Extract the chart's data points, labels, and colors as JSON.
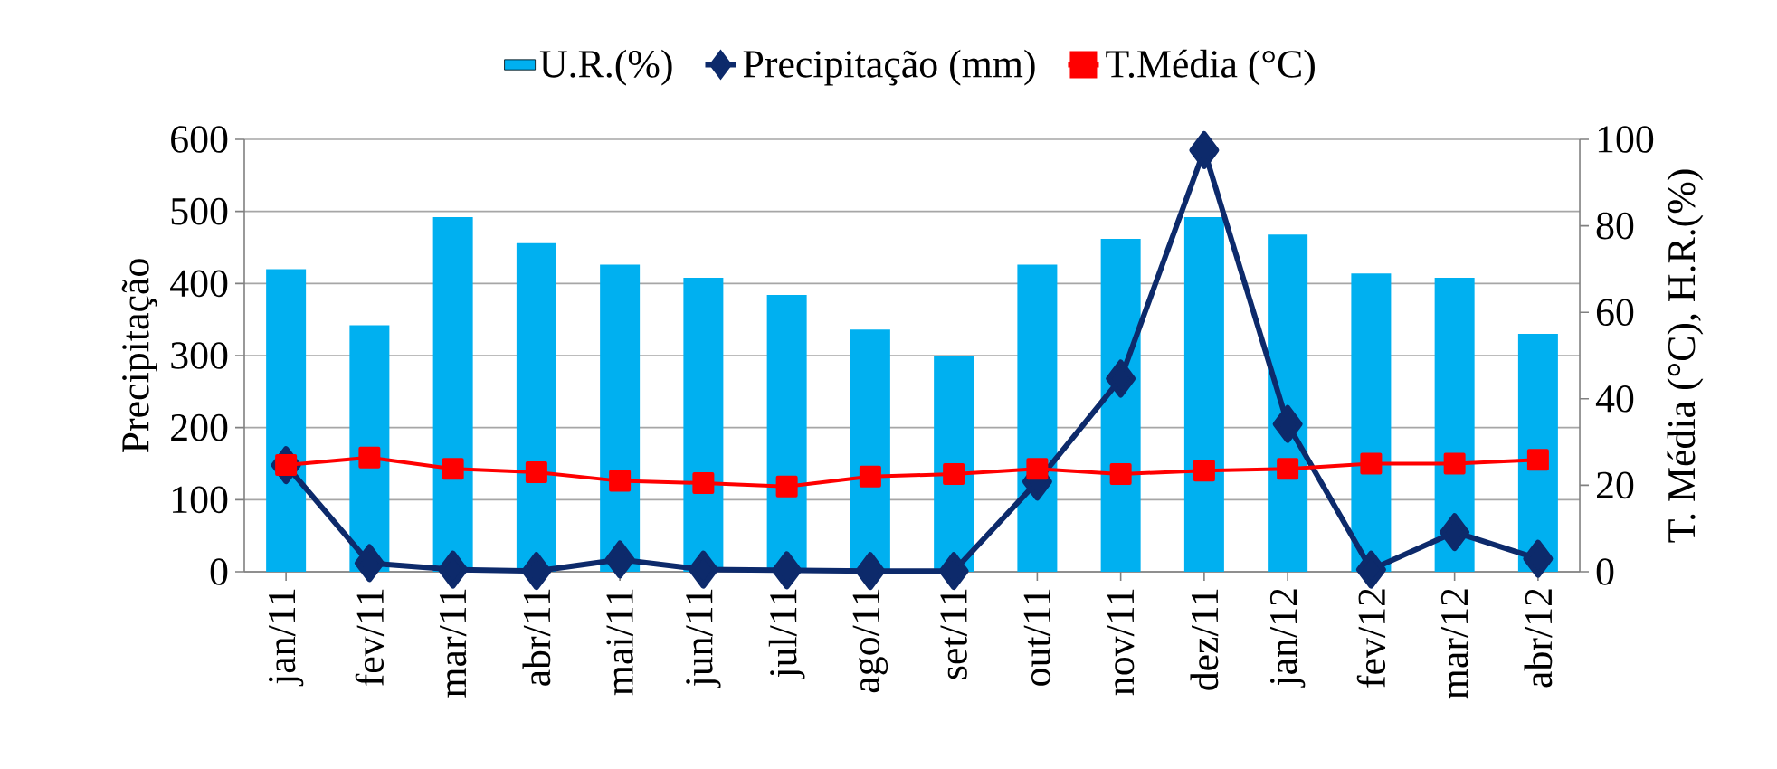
{
  "chart_data": {
    "type": "line",
    "ylabel": "Precipitação",
    "y2label": "T. Média (°C), H.R.(%)",
    "categories": [
      "jan/11",
      "fev/11",
      "mar/11",
      "abr/11",
      "mai/11",
      "jun/11",
      "jul/11",
      "ago/11",
      "set/11",
      "out/11",
      "nov/11",
      "dez/11",
      "jan/12",
      "fev/12",
      "mar/12",
      "abr/12"
    ],
    "series": [
      {
        "name": "U.R.(%)",
        "type": "bar",
        "axis": "y2",
        "color": "#00b0f0",
        "values": [
          70,
          57,
          82,
          76,
          71,
          68,
          64,
          56,
          50,
          71,
          77,
          82,
          78,
          69,
          68,
          55
        ]
      },
      {
        "name": "Precipitação (mm)",
        "axis": "y",
        "color": "#0d2a6b",
        "marker": "diamond",
        "values": [
          148,
          12,
          3,
          1,
          17,
          3,
          2,
          1,
          1,
          125,
          268,
          585,
          205,
          3,
          55,
          18
        ]
      },
      {
        "name": "T.Média (°C)",
        "axis": "y2",
        "color": "#ff0000",
        "marker": "square",
        "values": [
          24.7,
          26.4,
          23.8,
          23,
          21,
          20.5,
          19.7,
          22,
          22.6,
          23.8,
          22.6,
          23.4,
          23.8,
          25,
          25,
          25.9
        ]
      }
    ],
    "ylim": [
      0,
      600
    ],
    "yticks": [
      0,
      100,
      200,
      300,
      400,
      500,
      600
    ],
    "y2lim": [
      0,
      100
    ],
    "y2ticks": [
      0,
      20,
      40,
      60,
      80,
      100
    ],
    "grid": "y",
    "legend": "top"
  }
}
